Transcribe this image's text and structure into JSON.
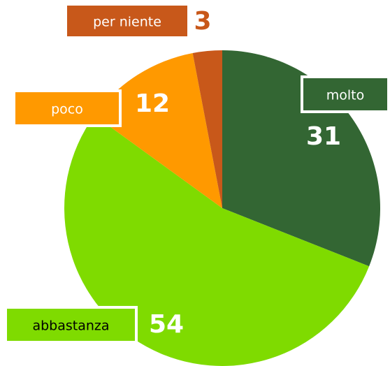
{
  "chart_data": {
    "type": "pie",
    "categories": [
      "molto",
      "abbastanza",
      "poco",
      "per niente"
    ],
    "values": [
      31,
      54,
      12,
      3
    ],
    "colors": [
      "#336633",
      "#7fdb00",
      "#ff9900",
      "#c8581a"
    ]
  }
}
